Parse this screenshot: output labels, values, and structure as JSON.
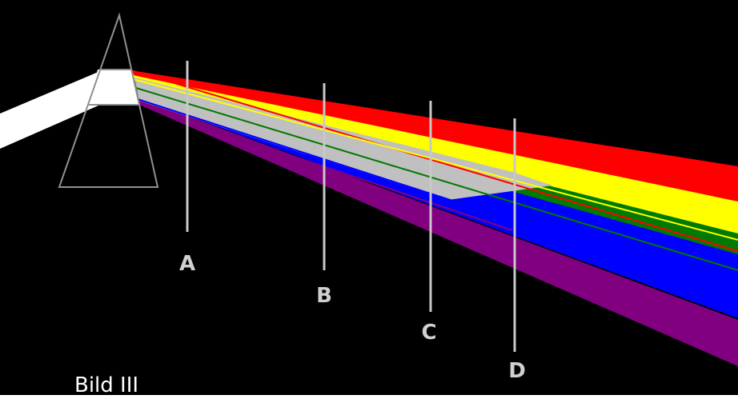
{
  "caption": "Bild III",
  "markers": [
    {
      "label": "A"
    },
    {
      "label": "B"
    },
    {
      "label": "C"
    },
    {
      "label": "D"
    }
  ],
  "colors": {
    "background": "#000000",
    "incident_beam": "#ffffff",
    "prism_outline": "#909090",
    "marker_line": "#c8c8c8",
    "marker_label": "#d0d0d0",
    "band_red": "#ff0000",
    "band_yellow": "#ffff00",
    "band_green": "#007a00",
    "band_blue": "#0000ff",
    "band_violet": "#800080",
    "band_mixed": "#c0c0c0"
  }
}
